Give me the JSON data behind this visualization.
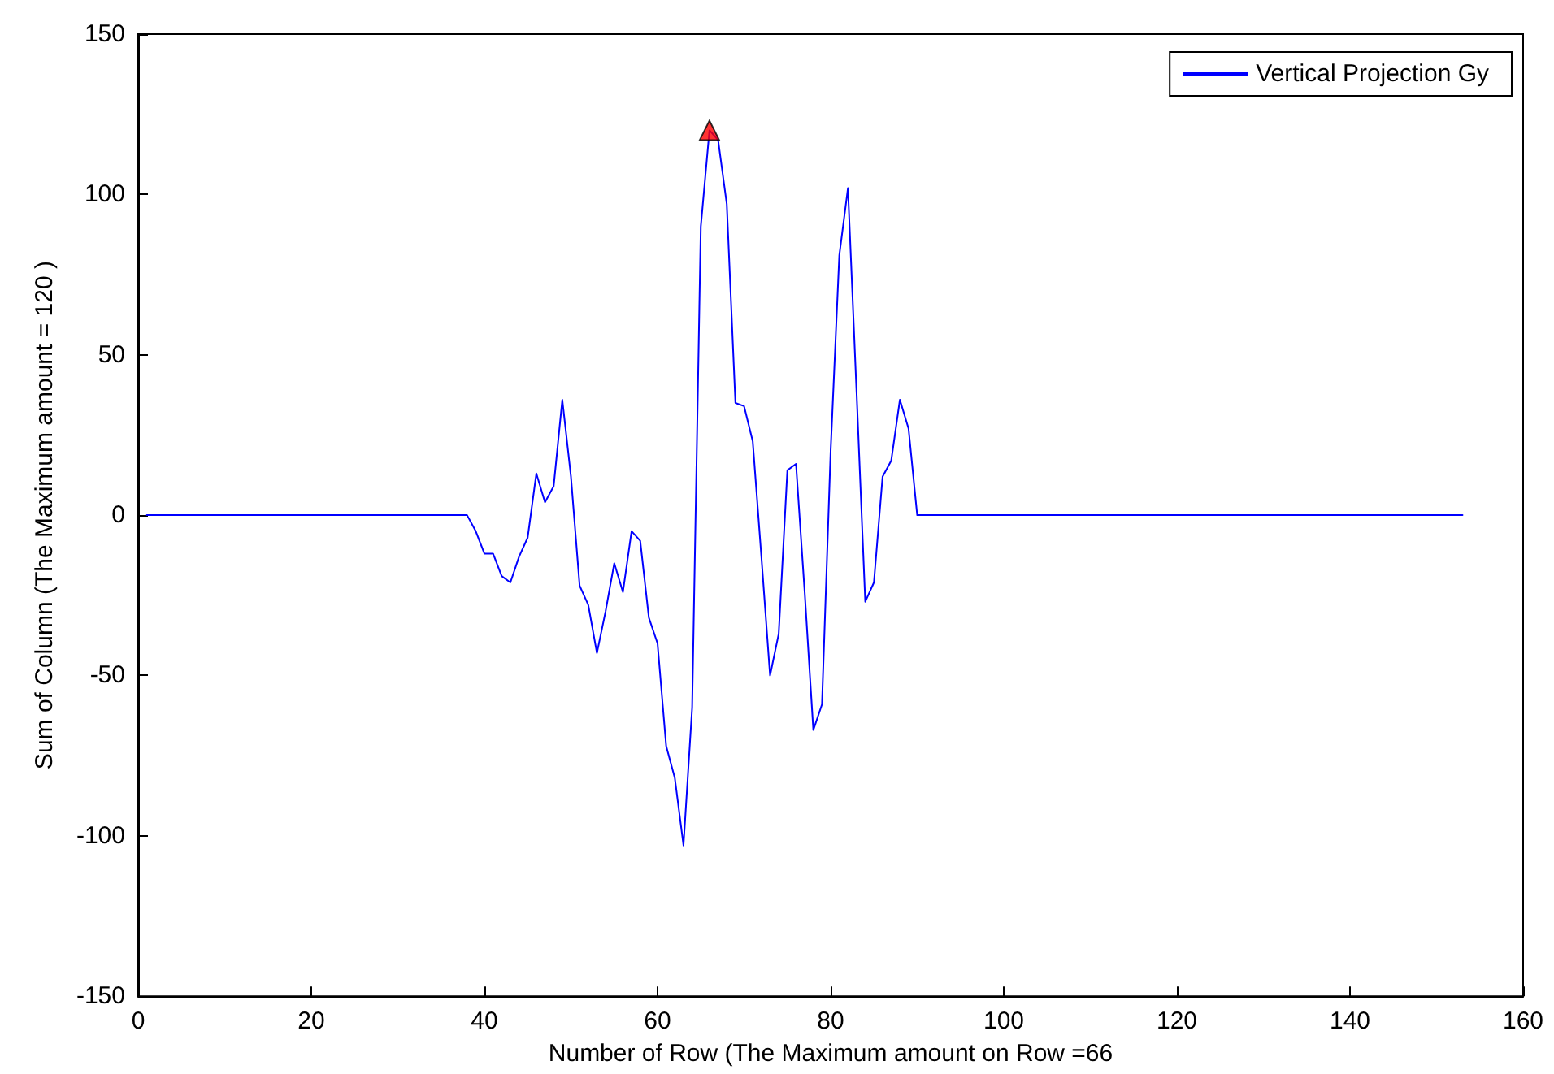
{
  "chart_data": {
    "type": "line",
    "xlabel": "Number of Row (The Maximum amount on Row =66",
    "ylabel": "Sum of Column (The Maximum amount = 120 )",
    "xlim": [
      0,
      160
    ],
    "xticks": [
      0,
      20,
      40,
      60,
      80,
      100,
      120,
      140,
      160
    ],
    "ylim": [
      -150,
      150
    ],
    "yticks": [
      -150,
      -100,
      -50,
      0,
      50,
      100,
      150
    ],
    "grid": false,
    "legend": "top right",
    "series": [
      {
        "name": "Vertical Projection Gy",
        "color": "#0000ff",
        "marker": "none",
        "line_style": "solid",
        "x": [
          1,
          38,
          39,
          40,
          41,
          42,
          43,
          44,
          45,
          46,
          47,
          48,
          49,
          50,
          51,
          52,
          53,
          54,
          55,
          56,
          57,
          58,
          59,
          60,
          61,
          62,
          63,
          64,
          65,
          66,
          67,
          68,
          69,
          70,
          71,
          72,
          73,
          74,
          75,
          76,
          77,
          78,
          79,
          80,
          81,
          82,
          83,
          84,
          85,
          86,
          87,
          88,
          89,
          90,
          153
        ],
        "values": [
          0,
          0,
          -5,
          -12,
          -12,
          -19,
          -21,
          -13,
          -7,
          13,
          4,
          9,
          36,
          12,
          -22,
          -28,
          -43,
          -30,
          -15,
          -24,
          -5,
          -8,
          -32,
          -40,
          -72,
          -82,
          -103,
          -60,
          90,
          120,
          117,
          97,
          35,
          34,
          23,
          -13,
          -50,
          -37,
          14,
          16,
          -24,
          -67,
          -59,
          20,
          81,
          102,
          38,
          -27,
          -21,
          12,
          17,
          36,
          27,
          0,
          0
        ]
      },
      {
        "type": "scatter",
        "color": "#ff0000",
        "marker": "triangle",
        "x": [
          66
        ],
        "values": [
          120
        ]
      }
    ]
  }
}
